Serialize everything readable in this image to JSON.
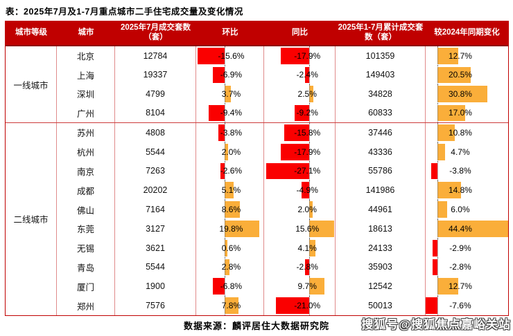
{
  "chart_data": {
    "type": "table",
    "title": "表：2025年7月及1-7月重点城市二手住宅成交量及变化情况",
    "columns": [
      "城市等级",
      "城市",
      "2025年7月成交套数（套）",
      "环比",
      "同比",
      "2025年1-7月累计成交套数（套）",
      "较2024年同期变化"
    ],
    "bar_columns_note": "环比 / 同比 / 较2024年同期变化 are percent values drawn as data bars: negative = red bar left of dotted zero axis, positive = orange bar right of axis",
    "sections": [
      {
        "tier": "一线城市",
        "rows": [
          {
            "city": "北京",
            "jul_2025_deals": "12784",
            "mom_pct": -15.6,
            "yoy_pct": -17.9,
            "cum_jan_jul_deals": "101359",
            "vs_2024_pct": 12.7
          },
          {
            "city": "上海",
            "jul_2025_deals": "19337",
            "mom_pct": -6.9,
            "yoy_pct": -2.4,
            "cum_jan_jul_deals": "149403",
            "vs_2024_pct": 20.5
          },
          {
            "city": "深圳",
            "jul_2025_deals": "4799",
            "mom_pct": 3.7,
            "yoy_pct": 2.5,
            "cum_jan_jul_deals": "34828",
            "vs_2024_pct": 30.8
          },
          {
            "city": "广州",
            "jul_2025_deals": "8104",
            "mom_pct": -9.4,
            "yoy_pct": -9.2,
            "cum_jan_jul_deals": "60833",
            "vs_2024_pct": 17.0
          }
        ]
      },
      {
        "tier": "二线城市",
        "rows": [
          {
            "city": "苏州",
            "jul_2025_deals": "4808",
            "mom_pct": -3.8,
            "yoy_pct": -15.8,
            "cum_jan_jul_deals": "37446",
            "vs_2024_pct": 10.8
          },
          {
            "city": "杭州",
            "jul_2025_deals": "5544",
            "mom_pct": 2.0,
            "yoy_pct": -17.9,
            "cum_jan_jul_deals": "43336",
            "vs_2024_pct": 4.7
          },
          {
            "city": "南京",
            "jul_2025_deals": "7263",
            "mom_pct": -2.6,
            "yoy_pct": -27.1,
            "cum_jan_jul_deals": "55786",
            "vs_2024_pct": -3.8
          },
          {
            "city": "成都",
            "jul_2025_deals": "20202",
            "mom_pct": 5.1,
            "yoy_pct": -4.9,
            "cum_jan_jul_deals": "141986",
            "vs_2024_pct": 14.8
          },
          {
            "city": "佛山",
            "jul_2025_deals": "7164",
            "mom_pct": 8.6,
            "yoy_pct": 2.0,
            "cum_jan_jul_deals": "44961",
            "vs_2024_pct": 6.0
          },
          {
            "city": "东莞",
            "jul_2025_deals": "3127",
            "mom_pct": 19.8,
            "yoy_pct": 15.6,
            "cum_jan_jul_deals": "18613",
            "vs_2024_pct": 44.4
          },
          {
            "city": "无锡",
            "jul_2025_deals": "3621",
            "mom_pct": 0.6,
            "yoy_pct": 4.1,
            "cum_jan_jul_deals": "24133",
            "vs_2024_pct": -2.9
          },
          {
            "city": "青岛",
            "jul_2025_deals": "5544",
            "mom_pct": 2.8,
            "yoy_pct": -2.8,
            "cum_jan_jul_deals": "35903",
            "vs_2024_pct": -2.8
          },
          {
            "city": "厦门",
            "jul_2025_deals": "1900",
            "mom_pct": -6.8,
            "yoy_pct": 9.7,
            "cum_jan_jul_deals": "12542",
            "vs_2024_pct": 12.7
          },
          {
            "city": "郑州",
            "jul_2025_deals": "7576",
            "mom_pct": 7.8,
            "yoy_pct": -21.0,
            "cum_jan_jul_deals": "50013",
            "vs_2024_pct": -7.6
          }
        ]
      }
    ]
  },
  "source": "数据来源：麟评居住大数据研究院",
  "watermark": "搜狐号@搜狐焦点嘉峪关站",
  "colors": {
    "header_bg": "#c00000",
    "header_text": "#ffffff",
    "negative_bar": "#fa0000",
    "positive_bar": "#faae3a",
    "grid_line": "#e08a8a",
    "outer_border": "#c00000"
  }
}
